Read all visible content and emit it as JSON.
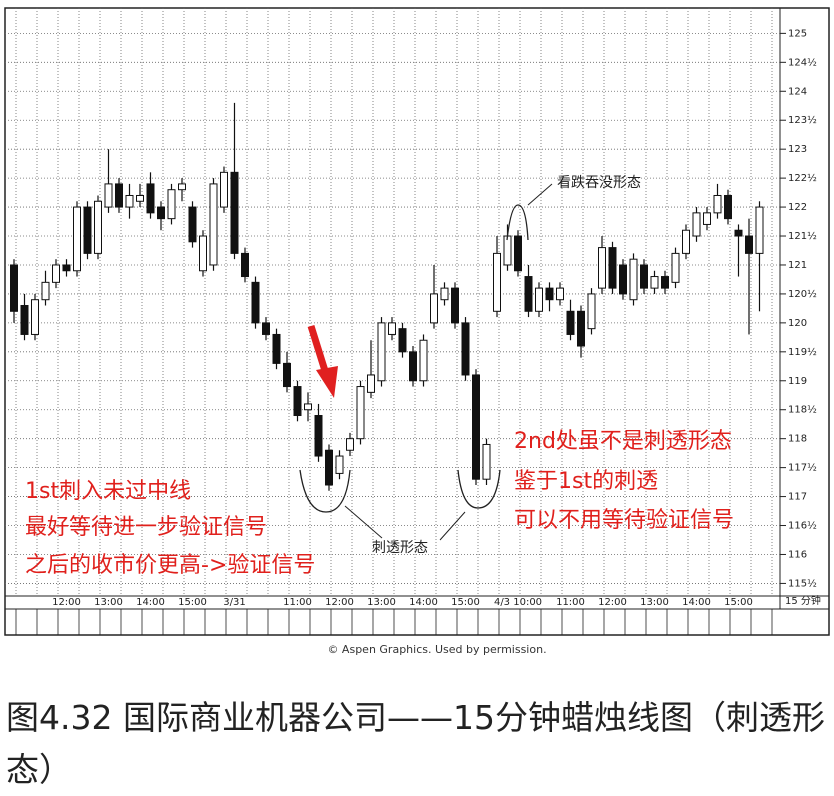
{
  "chart_data": {
    "type": "candlestick",
    "categories": [
      null,
      null,
      null,
      null,
      null,
      "12:00",
      null,
      null,
      null,
      "13:00",
      null,
      null,
      null,
      "14:00",
      null,
      null,
      null,
      "15:00",
      null,
      null,
      null,
      "3/31",
      null,
      null,
      null,
      null,
      null,
      "11:00",
      null,
      null,
      null,
      "12:00",
      null,
      null,
      null,
      "13:00",
      null,
      null,
      null,
      "14:00",
      null,
      null,
      null,
      "15:00",
      null,
      null,
      null,
      null,
      "4/3 10:00",
      null,
      null,
      null,
      null,
      "11:00",
      null,
      null,
      null,
      "12:00",
      null,
      null,
      null,
      "13:00",
      null,
      null,
      null,
      "14:00",
      null,
      null,
      null,
      "15:00",
      null,
      null
    ],
    "open": [
      121,
      120.3,
      119.8,
      120.4,
      120.7,
      121,
      120.9,
      122,
      121.2,
      122,
      122.4,
      122,
      122.1,
      122.4,
      122,
      121.8,
      122.3,
      122,
      120.9,
      121,
      122,
      122.6,
      121.2,
      120.7,
      120,
      119.8,
      119.3,
      118.9,
      118.5,
      118.4,
      117.8,
      117.4,
      117.8,
      118,
      118.8,
      119,
      119.8,
      119.9,
      119.5,
      119,
      120,
      120.4,
      120.6,
      120,
      119.1,
      117.3,
      120.2,
      121,
      121.5,
      120.8,
      120.2,
      120.6,
      120.4,
      120.2,
      120.2,
      119.9,
      120.6,
      121.3,
      121,
      120.4,
      121,
      120.6,
      120.8,
      120.7,
      121.2,
      121.5,
      121.7,
      121.9,
      122.2,
      121.6,
      121.5,
      121.2
    ],
    "high": [
      121.1,
      120.5,
      120.5,
      120.9,
      121.1,
      121.1,
      122.1,
      122.1,
      122.2,
      123,
      122.5,
      122.4,
      122.4,
      122.6,
      122.1,
      122.4,
      122.5,
      122.1,
      121.6,
      122.5,
      122.7,
      123.8,
      121.3,
      120.8,
      120.1,
      119.9,
      119.5,
      119,
      118.8,
      118.6,
      117.9,
      117.8,
      118.1,
      119,
      119.7,
      120.1,
      120.1,
      120,
      119.6,
      119.8,
      121,
      120.7,
      120.7,
      120.1,
      119.2,
      118,
      121.5,
      121.7,
      121.6,
      121,
      120.7,
      120.7,
      120.7,
      120.4,
      120.3,
      120.6,
      121.5,
      121.4,
      121.1,
      121.2,
      121.1,
      120.9,
      120.9,
      121.3,
      121.7,
      122,
      122,
      122.4,
      122.3,
      121.7,
      121.8,
      122.1
    ],
    "low": [
      120,
      119.7,
      119.7,
      120.3,
      120.6,
      120.8,
      120.8,
      121.1,
      121.1,
      121.9,
      121.9,
      121.8,
      122,
      121.8,
      121.6,
      121.7,
      122.1,
      121.3,
      120.8,
      120.9,
      121.9,
      121.1,
      120.7,
      119.9,
      119.7,
      119.2,
      118.8,
      118.3,
      118.3,
      117.6,
      117.1,
      117.3,
      117.7,
      117.9,
      118.7,
      118.9,
      119.7,
      119.4,
      118.9,
      118.9,
      119.9,
      120.3,
      119.9,
      119,
      117.2,
      117.2,
      120.1,
      120.9,
      120.8,
      120.1,
      120.1,
      120.2,
      120.3,
      119.7,
      119.4,
      119.8,
      120.5,
      120.5,
      120.4,
      120.3,
      120.5,
      120.5,
      120.5,
      120.6,
      121.1,
      121.4,
      121.6,
      121.8,
      121.7,
      120.8,
      119.8,
      120.2
    ],
    "close": [
      120.2,
      119.8,
      120.4,
      120.7,
      121,
      120.9,
      122,
      121.2,
      122.1,
      122.4,
      122,
      122.2,
      122.2,
      121.9,
      121.8,
      122.3,
      122.4,
      121.4,
      121.5,
      122.4,
      122.6,
      121.2,
      120.8,
      120,
      119.8,
      119.3,
      118.9,
      118.4,
      118.6,
      117.7,
      117.2,
      117.7,
      118,
      118.9,
      119.1,
      120,
      120,
      119.5,
      119,
      119.7,
      120.5,
      120.6,
      120,
      119.1,
      117.3,
      117.9,
      121.2,
      121.5,
      120.9,
      120.2,
      120.6,
      120.4,
      120.6,
      119.8,
      119.6,
      120.5,
      121.3,
      120.6,
      120.5,
      121.1,
      120.6,
      120.8,
      120.6,
      121.2,
      121.6,
      121.9,
      121.9,
      122.2,
      121.8,
      121.5,
      121.2,
      122
    ],
    "up_color": "#ffffff",
    "down_color": "#111111",
    "ylim": [
      115.3,
      125.3
    ],
    "yticks": [
      {
        "value": 115.5,
        "label": "115½"
      },
      116,
      {
        "value": 116.5,
        "label": "116½"
      },
      117,
      {
        "value": 117.5,
        "label": "117½"
      },
      118,
      {
        "value": 118.5,
        "label": "118½"
      },
      119,
      {
        "value": 119.5,
        "label": "119½"
      },
      120,
      {
        "value": 120.5,
        "label": "120½"
      },
      121,
      {
        "value": 121.5,
        "label": "121½"
      },
      122,
      {
        "value": 122.5,
        "label": "122½"
      },
      123,
      {
        "value": 123.5,
        "label": "123½"
      },
      124,
      {
        "value": 124.5,
        "label": "124½"
      },
      125
    ],
    "grid": true,
    "x_unit": "15 分钟",
    "annotations": [
      "看跌吞没形态",
      "刺透形态"
    ],
    "notes_left": [
      "1st刺入未过中线",
      "最好等待进一步验证信号",
      "之后的收市价更高->验证信号"
    ],
    "notes_right": [
      "2nd处虽不是刺透形态",
      "鉴于1st的刺透",
      "可以不用等待验证信号"
    ]
  },
  "credit": "© Aspen Graphics. Used by permission.",
  "caption": "图4.32 国际商业机器公司——15分钟蜡烛线图（刺透形态）"
}
